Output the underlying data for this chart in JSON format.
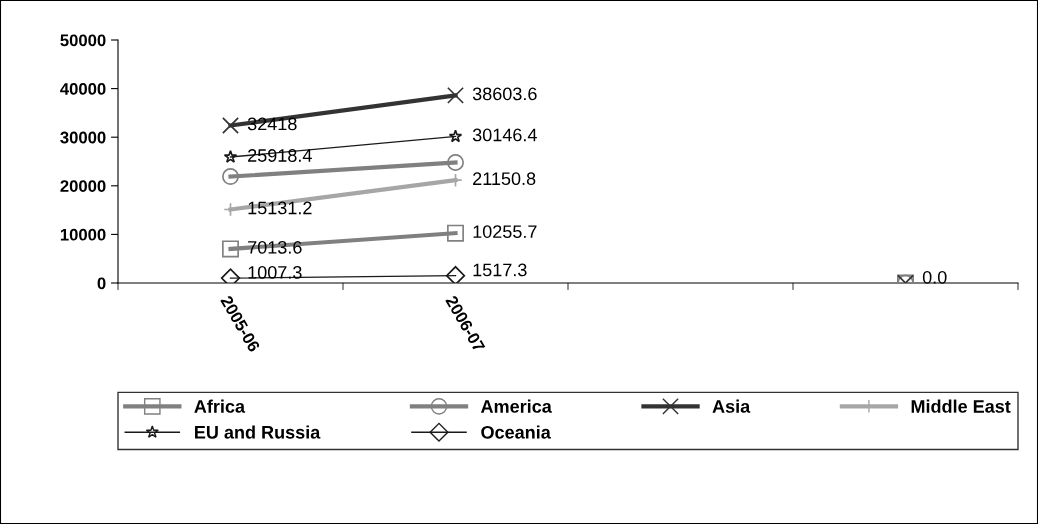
{
  "chart_data": {
    "type": "line",
    "categories": [
      "2005-06",
      "2006-07",
      null,
      null
    ],
    "series": [
      {
        "name": "Africa",
        "color": "#808080",
        "marker": "square",
        "values": [
          7013.6,
          10255.7,
          null,
          0
        ],
        "value_labels": [
          "7013.6",
          "10255.7",
          null,
          "0.0"
        ]
      },
      {
        "name": "America",
        "color": "#808080",
        "marker": "circle",
        "values": [
          21900,
          24800,
          null,
          0
        ],
        "value_labels": [
          null,
          null,
          null,
          null
        ]
      },
      {
        "name": "Asia",
        "color": "#333333",
        "marker": "x",
        "values": [
          32418,
          38603.6,
          null,
          0
        ],
        "value_labels": [
          "32418",
          "38603.6",
          null,
          null
        ]
      },
      {
        "name": "Middle East",
        "color": "#a6a6a6",
        "marker": "plus",
        "values": [
          15131.2,
          21150.8,
          null,
          null
        ],
        "value_labels": [
          "15131.2",
          "21150.8",
          null,
          null
        ]
      },
      {
        "name": "EU and Russia",
        "color": "#1a1a1a",
        "marker": "star",
        "values": [
          25918.4,
          30146.4,
          null,
          null
        ],
        "value_labels": [
          "25918.4",
          "30146.4",
          null,
          null
        ]
      },
      {
        "name": "Oceania",
        "color": "#1a1a1a",
        "marker": "diamond",
        "values": [
          1007.3,
          1517.3,
          null,
          null
        ],
        "value_labels": [
          "1007.3",
          "1517.3",
          null,
          null
        ]
      }
    ],
    "ylim": [
      0,
      50000
    ],
    "yticks": [
      0,
      10000,
      20000,
      30000,
      40000,
      50000
    ],
    "grid": false,
    "legend": "bottom"
  }
}
